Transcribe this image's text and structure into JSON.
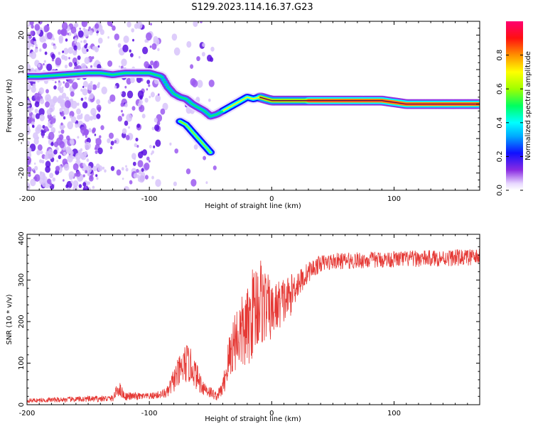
{
  "title": "S129.2023.114.16.37.G23",
  "chart_data": [
    {
      "type": "heatmap",
      "xlabel": "Height of straight line (km)",
      "ylabel": "Frequency (Hz)",
      "xlim": [
        -200,
        170
      ],
      "ylim": [
        -25,
        24
      ],
      "x_ticks": [
        -200,
        -100,
        0,
        100
      ],
      "y_ticks": [
        -20,
        -10,
        0,
        10,
        20
      ],
      "colorbar": {
        "label": "Normalized spectral amplitude",
        "range": [
          0,
          1
        ],
        "ticks": [
          "0.0",
          "0.2",
          "0.4",
          "0.6",
          "0.8"
        ],
        "tick_values": [
          0,
          0.2,
          0.4,
          0.6,
          0.8
        ]
      },
      "ridge": {
        "x": [
          -200,
          -195,
          -190,
          -150,
          -140,
          -130,
          -120,
          -110,
          -100,
          -90,
          -85,
          -80,
          -75,
          -70,
          -65,
          -60,
          -55,
          -50,
          -45,
          -40,
          -35,
          -30,
          -25,
          -20,
          -15,
          -10,
          -5,
          0,
          10,
          20,
          30,
          50,
          70,
          90,
          100,
          110,
          130,
          150,
          170
        ],
        "y": [
          8,
          8,
          8,
          9,
          9,
          8.5,
          9,
          9,
          9,
          8,
          5,
          3,
          2,
          1.5,
          0,
          -1,
          -2,
          -3.5,
          -3,
          -2,
          -1,
          0,
          1,
          2,
          1.5,
          2,
          1.5,
          1,
          1,
          1,
          1,
          1,
          1,
          1,
          0.5,
          0,
          0,
          0,
          0
        ],
        "branch_x": [
          -75,
          -70,
          -65,
          -60,
          -55,
          -50
        ],
        "branch_y": [
          -5,
          -6,
          -8,
          -10,
          -12,
          -14
        ]
      }
    },
    {
      "type": "line",
      "xlabel": "Height of straight line (km)",
      "ylabel": "SNR (10 * v/v)",
      "xlim": [
        -200,
        170
      ],
      "ylim": [
        0,
        410
      ],
      "x_ticks": [
        -200,
        -100,
        0,
        100
      ],
      "y_ticks": [
        0,
        100,
        200,
        300,
        400
      ],
      "series_color": "#e53935",
      "profile_x": [
        -200,
        -130,
        -125,
        -120,
        -100,
        -90,
        -85,
        -80,
        -75,
        -70,
        -65,
        -60,
        -55,
        -50,
        -45,
        -40,
        -35,
        -30,
        -25,
        -20,
        -15,
        -10,
        -5,
        0,
        5,
        10,
        15,
        20,
        25,
        30,
        40,
        50,
        100,
        170
      ],
      "profile_y": [
        10,
        15,
        40,
        20,
        20,
        25,
        30,
        60,
        80,
        100,
        90,
        60,
        40,
        30,
        20,
        40,
        110,
        160,
        170,
        180,
        230,
        250,
        240,
        220,
        240,
        250,
        260,
        290,
        300,
        320,
        340,
        345,
        350,
        355
      ],
      "noise_amplitude": [
        5,
        8,
        20,
        10,
        8,
        10,
        15,
        30,
        40,
        50,
        40,
        30,
        20,
        15,
        10,
        20,
        60,
        80,
        90,
        100,
        110,
        120,
        90,
        70,
        60,
        60,
        50,
        40,
        30,
        25,
        20,
        20,
        20,
        20
      ]
    }
  ]
}
